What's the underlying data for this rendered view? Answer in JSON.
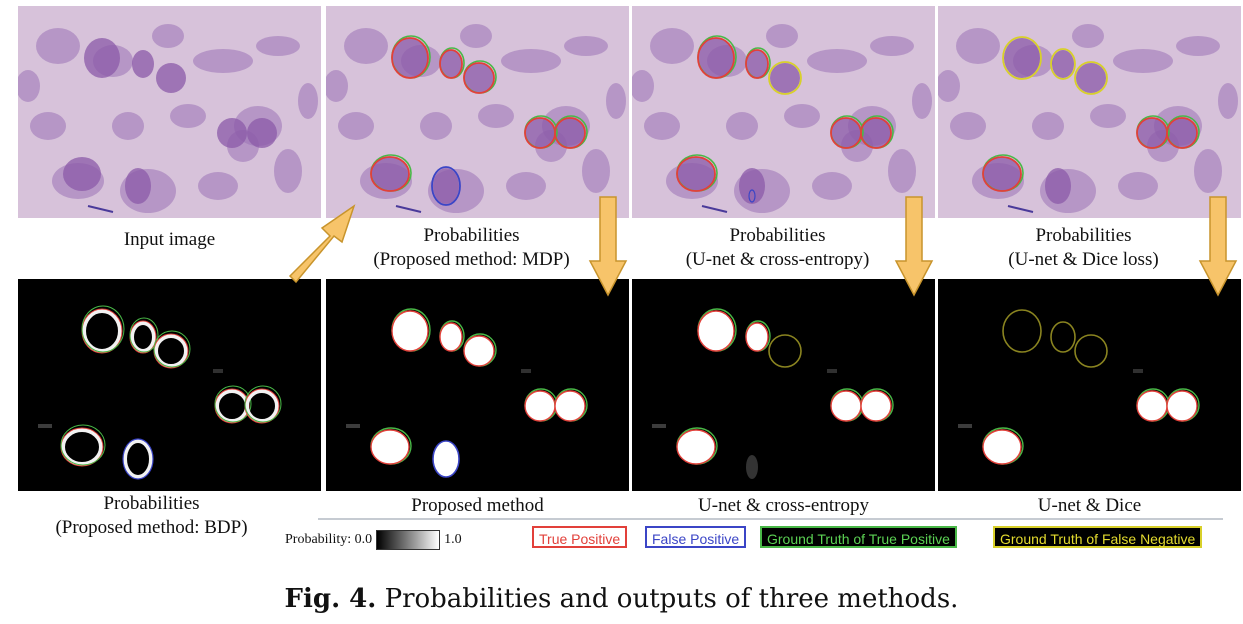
{
  "figure": {
    "label": "Fig. 4.",
    "caption": "Probabilities and outputs of three methods."
  },
  "top_captions": {
    "input": "Input image",
    "mdp_line1": "Probabilities",
    "mdp_line2": "(Proposed method: MDP)",
    "ce_line1": "Probabilities",
    "ce_line2": "(U-net & cross-entropy)",
    "dice_line1": "Probabilities",
    "dice_line2": "(U-net & Dice loss)"
  },
  "bottom_captions": {
    "bdp_line1": "Probabilities",
    "bdp_line2": "(Proposed method: BDP)",
    "proposed": "Proposed method",
    "ce": "U-net & cross-entropy",
    "dice": "U-net & Dice"
  },
  "scale": {
    "label": "Probability: 0.0",
    "max": "1.0"
  },
  "legend": {
    "tp": "True Positive",
    "fp": "False Positive",
    "gt_tp": "Ground Truth of True Positive",
    "gt_fn": "Ground Truth of False Negative"
  },
  "colors": {
    "true_positive": "#e2403a",
    "false_positive": "#3b45c6",
    "gt_true_positive": "#49b847",
    "gt_false_negative": "#d8d02a",
    "tissue": "#d7c2da",
    "nucleus": "#8b5aa8",
    "arrow": "#f7c46a"
  }
}
